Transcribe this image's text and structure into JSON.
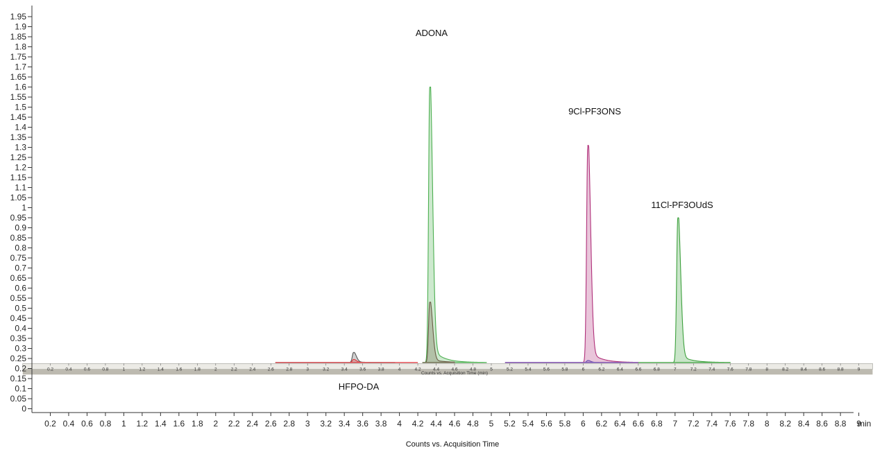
{
  "chart_data": {
    "type": "line",
    "xlabel": "Counts vs. Acquisition Time",
    "x_unit": "min",
    "xlim": [
      0,
      9
    ],
    "ylim": [
      0,
      1.95
    ],
    "y_ticks": [
      0,
      0.05,
      0.1,
      0.15,
      0.2,
      0.25,
      0.3,
      0.35,
      0.4,
      0.45,
      0.5,
      0.55,
      0.6,
      0.65,
      0.7,
      0.75,
      0.8,
      0.85,
      0.9,
      0.95,
      1,
      1.05,
      1.1,
      1.15,
      1.2,
      1.25,
      1.3,
      1.35,
      1.4,
      1.45,
      1.5,
      1.55,
      1.6,
      1.65,
      1.7,
      1.75,
      1.8,
      1.85,
      1.9,
      1.95
    ],
    "x_ticks": [
      0.2,
      0.4,
      0.6,
      0.8,
      1,
      1.2,
      1.4,
      1.6,
      1.8,
      2,
      2.2,
      2.4,
      2.6,
      2.8,
      3,
      3.2,
      3.4,
      3.6,
      3.8,
      4,
      4.2,
      4.4,
      4.6,
      4.8,
      5,
      5.2,
      5.4,
      5.6,
      5.8,
      6,
      6.2,
      6.4,
      6.6,
      6.8,
      7,
      7.2,
      7.4,
      7.6,
      7.8,
      8,
      8.2,
      8.4,
      8.6,
      8.8,
      9
    ],
    "baseline": 0.23,
    "peaks": [
      {
        "label": "HFPO-DA",
        "rt": 3.5,
        "apex": 0.28,
        "color": "#555555",
        "range": [
          2.65,
          3.95
        ]
      },
      {
        "label": "HFPO-DA",
        "rt": 3.5,
        "apex": 0.245,
        "color": "#e0383e",
        "range": [
          2.65,
          4.2
        ]
      },
      {
        "label": "ADONA",
        "rt": 4.33,
        "apex": 1.6,
        "color": "#4caf50",
        "range": [
          4.25,
          4.95
        ]
      },
      {
        "label": "ADONA",
        "rt": 4.33,
        "apex": 0.53,
        "color": "#6b5a45",
        "range": [
          4.25,
          4.6
        ]
      },
      {
        "label": "9Cl-PF3ONS",
        "rt": 6.05,
        "apex": 1.31,
        "color": "#b0307a",
        "range": [
          5.15,
          6.6
        ]
      },
      {
        "label": "9Cl-PF3ONS",
        "rt": 6.05,
        "apex": 0.24,
        "color": "#6a4cb0",
        "range": [
          5.15,
          6.6
        ]
      },
      {
        "label": "11Cl-PF3OUdS",
        "rt": 7.03,
        "apex": 0.95,
        "color": "#3ca03c",
        "range": [
          6.6,
          7.6
        ]
      }
    ],
    "annotations": [
      "ADONA",
      "9Cl-PF3ONS",
      "11Cl-PF3OUdS",
      "HFPO-DA"
    ],
    "inset_bar": {
      "label": "Counts vs. Acquisition Time (min)",
      "ticks": [
        "0.2",
        "0.4",
        "0.6",
        "0.8",
        "1",
        "1.2",
        "1.4",
        "1.6",
        "1.8",
        "2",
        "2.2",
        "2.4",
        "2.6",
        "2.8",
        "3",
        "3.2",
        "3.4",
        "3.6",
        "3.8",
        "4",
        "4.2",
        "4.4",
        "4.6",
        "4.8",
        "5",
        "5.2",
        "5.4",
        "5.6",
        "5.8",
        "6",
        "6.2",
        "6.4",
        "6.6",
        "6.8",
        "7",
        "7.2",
        "7.4",
        "7.6",
        "7.8",
        "8",
        "8.2",
        "8.4",
        "8.6",
        "8.8",
        "9"
      ],
      "y_range": [
        0.17,
        0.225
      ],
      "x_range": [
        -0.1,
        9.15
      ]
    },
    "grid": false,
    "legend": "none"
  }
}
